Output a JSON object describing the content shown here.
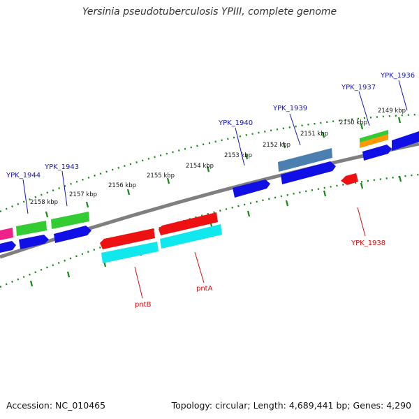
{
  "header": {
    "title": "Yersinia pseudotuberculosis YPIII, complete genome"
  },
  "footer": {
    "accession": "Accession: NC_010465",
    "topology": "Topology: circular; Length: 4,689,441 bp; Genes: 4,290"
  },
  "scale": {
    "tick_labels": [
      "2149 kbp",
      "2150 kbp",
      "2151 kbp",
      "2152 kbp",
      "2153 kbp",
      "2154 kbp",
      "2155 kbp",
      "2156 kbp",
      "2157 kbp",
      "2158 kbp"
    ]
  },
  "gene_labels": {
    "forward": [
      "YPK_1936",
      "YPK_1937",
      "YPK_1939",
      "YPK_1940",
      "YPK_1943",
      "YPK_1944"
    ],
    "reverse": [
      "YPK_1938",
      "pntA",
      "pntB"
    ]
  },
  "colors": {
    "cds": "#1010e6",
    "gene_green": "#33cc33",
    "gene_red": "#ee1111",
    "gene_cyan": "#11e8ee",
    "gene_steelblue": "#4a7fb0",
    "gene_orange": "#ff9900",
    "gene_pink": "#ee2288",
    "forward_label": "#1414b4",
    "reverse_label": "#d01010",
    "backbone": "#7f7f7f",
    "ticks": "#118811"
  },
  "icons": {
    "gene_arrow": "arrow-shape",
    "tick": "dash-mark"
  }
}
